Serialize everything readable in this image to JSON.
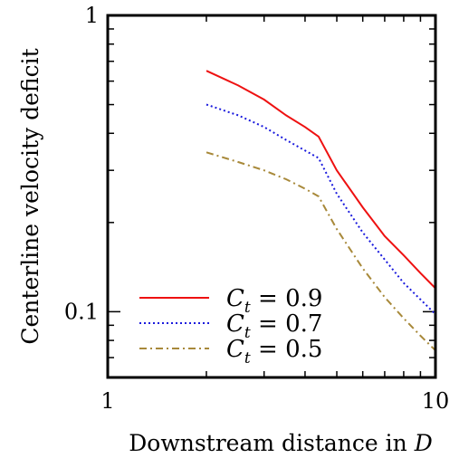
{
  "chart_data": {
    "type": "line",
    "xlabel": "Downstream distance in",
    "xlabel_var": "D",
    "ylabel": "Centerline velocity deficit",
    "x_scale": "log",
    "y_scale": "log",
    "xlim": [
      1,
      10
    ],
    "ylim": [
      0.06,
      1
    ],
    "x_ticks": [
      {
        "value": 1,
        "label": "1"
      },
      {
        "value": 10,
        "label": "10"
      }
    ],
    "y_ticks": [
      {
        "value": 0.1,
        "label": "0.1"
      },
      {
        "value": 1,
        "label": "1"
      }
    ],
    "legend_position": "bottom-left",
    "series": [
      {
        "name": "C_t = 0.9",
        "legend_symbol": "C",
        "legend_subscript": "t",
        "legend_value": " = 0.9",
        "color": "#ee1111",
        "dash": "solid",
        "x": [
          2.0,
          2.5,
          3.0,
          3.5,
          4.0,
          4.4,
          5.0,
          6.0,
          7.0,
          8.0,
          9.0,
          10.0
        ],
        "y": [
          0.65,
          0.58,
          0.52,
          0.46,
          0.42,
          0.39,
          0.3,
          0.225,
          0.18,
          0.155,
          0.135,
          0.12
        ]
      },
      {
        "name": "C_t = 0.7",
        "legend_symbol": "C",
        "legend_subscript": "t",
        "legend_value": " = 0.7",
        "color": "#1a1add",
        "dash": "dotted",
        "x": [
          2.0,
          2.5,
          3.0,
          3.5,
          4.0,
          4.4,
          5.0,
          6.0,
          7.0,
          8.0,
          9.0,
          10.0
        ],
        "y": [
          0.5,
          0.46,
          0.42,
          0.38,
          0.35,
          0.33,
          0.25,
          0.185,
          0.15,
          0.125,
          0.11,
          0.098
        ]
      },
      {
        "name": "C_t = 0.5",
        "legend_symbol": "C",
        "legend_subscript": "t",
        "legend_value": " = 0.5",
        "color": "#a8893a",
        "dash": "dash-dot",
        "x": [
          2.0,
          2.5,
          3.0,
          3.5,
          4.0,
          4.4,
          5.0,
          6.0,
          7.0,
          8.0,
          9.0,
          10.0
        ],
        "y": [
          0.345,
          0.32,
          0.3,
          0.28,
          0.26,
          0.245,
          0.19,
          0.14,
          0.112,
          0.095,
          0.083,
          0.074
        ]
      }
    ]
  }
}
